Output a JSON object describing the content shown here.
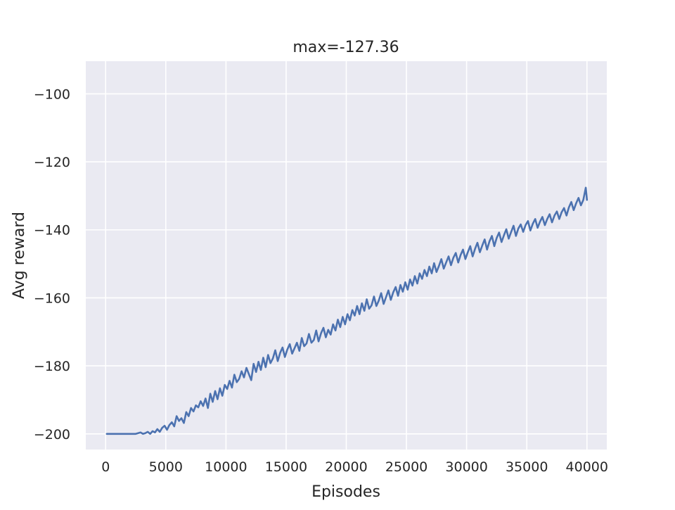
{
  "chart_data": {
    "type": "line",
    "title": "max=-127.36",
    "xlabel": "Episodes",
    "ylabel": "Avg reward",
    "xlim": [
      -1650,
      41650
    ],
    "ylim": [
      -204.6,
      -90.4
    ],
    "xticks": [
      0,
      5000,
      10000,
      15000,
      20000,
      25000,
      30000,
      35000,
      40000
    ],
    "yticks": [
      -200,
      -180,
      -160,
      -140,
      -120,
      -100
    ],
    "xtick_labels": [
      "0",
      "5000",
      "10000",
      "15000",
      "20000",
      "25000",
      "30000",
      "35000",
      "40000"
    ],
    "ytick_labels": [
      "−200",
      "−180",
      "−160",
      "−140",
      "−120",
      "−100"
    ],
    "grid": true,
    "colors": {
      "background": "#eaeaf2",
      "grid": "#ffffff",
      "line": "#4c72b0",
      "text": "#262626"
    },
    "series": [
      {
        "x": [
          100,
          500,
          1000,
          1500,
          2000,
          2500,
          2900,
          3100,
          3300,
          3500,
          3700,
          3900,
          4100,
          4300,
          4500,
          4700,
          4900,
          5100,
          5300,
          5500,
          5700,
          5900,
          6100,
          6300,
          6500,
          6700,
          6900,
          7100,
          7300,
          7500,
          7700,
          7900,
          8100,
          8300,
          8500,
          8700,
          8900,
          9100,
          9300,
          9500,
          9700,
          9900,
          10100,
          10300,
          10500,
          10700,
          10900,
          11100,
          11300,
          11500,
          11700,
          11900,
          12100,
          12300,
          12500,
          12700,
          12900,
          13100,
          13300,
          13500,
          13700,
          13900,
          14100,
          14300,
          14500,
          14700,
          14900,
          15100,
          15300,
          15500,
          15700,
          15900,
          16100,
          16300,
          16500,
          16700,
          16900,
          17100,
          17300,
          17500,
          17700,
          17900,
          18100,
          18300,
          18500,
          18700,
          18900,
          19100,
          19300,
          19500,
          19700,
          19900,
          20100,
          20300,
          20500,
          20700,
          20900,
          21100,
          21300,
          21500,
          21700,
          21900,
          22100,
          22300,
          22500,
          22700,
          22900,
          23100,
          23300,
          23500,
          23700,
          23900,
          24100,
          24300,
          24500,
          24700,
          24900,
          25100,
          25300,
          25500,
          25700,
          25900,
          26100,
          26300,
          26500,
          26700,
          26900,
          27100,
          27300,
          27500,
          27700,
          27900,
          28100,
          28300,
          28500,
          28700,
          28900,
          29100,
          29300,
          29500,
          29700,
          29900,
          30100,
          30300,
          30500,
          30700,
          30900,
          31100,
          31300,
          31500,
          31700,
          31900,
          32100,
          32300,
          32500,
          32700,
          32900,
          33100,
          33300,
          33500,
          33700,
          33900,
          34100,
          34300,
          34500,
          34700,
          34900,
          35100,
          35300,
          35500,
          35700,
          35900,
          36100,
          36300,
          36500,
          36700,
          36900,
          37100,
          37300,
          37500,
          37700,
          37900,
          38100,
          38300,
          38500,
          38700,
          38900,
          39100,
          39300,
          39500,
          39700,
          39900,
          40000
        ],
        "values": [
          -200,
          -200,
          -200,
          -200,
          -200,
          -200,
          -199.6,
          -200,
          -199.8,
          -199.4,
          -200,
          -199.2,
          -199.6,
          -198.6,
          -199.4,
          -198.2,
          -197.6,
          -198.8,
          -197.4,
          -196.6,
          -197.8,
          -194.8,
          -196.2,
          -195.4,
          -196.8,
          -193.6,
          -194.8,
          -192.4,
          -193.4,
          -191.6,
          -192.2,
          -190.4,
          -191.8,
          -189.6,
          -192.4,
          -188.2,
          -190.6,
          -187.4,
          -189.8,
          -186.6,
          -188.8,
          -185.6,
          -186.8,
          -184.4,
          -186.4,
          -182.6,
          -184.8,
          -183.8,
          -181.6,
          -183.4,
          -180.6,
          -182.4,
          -184.2,
          -179.4,
          -181.8,
          -178.8,
          -181.2,
          -177.6,
          -180.4,
          -176.8,
          -179.2,
          -177.8,
          -175.4,
          -178.6,
          -176.2,
          -174.6,
          -177.4,
          -175.2,
          -173.6,
          -176.4,
          -174.8,
          -173.2,
          -175.6,
          -171.8,
          -174.2,
          -173.4,
          -170.6,
          -173.2,
          -172.4,
          -169.6,
          -172.8,
          -170.4,
          -168.8,
          -171.6,
          -169.4,
          -170.8,
          -167.8,
          -169.6,
          -166.4,
          -168.6,
          -165.6,
          -167.8,
          -164.8,
          -166.6,
          -163.6,
          -165.2,
          -162.4,
          -164.8,
          -161.6,
          -163.8,
          -160.4,
          -163.2,
          -162.2,
          -159.6,
          -162.4,
          -160.8,
          -158.6,
          -161.8,
          -159.8,
          -157.8,
          -160.6,
          -158.4,
          -156.8,
          -159.4,
          -156.2,
          -158.2,
          -155.4,
          -157.6,
          -154.6,
          -156.4,
          -153.6,
          -155.8,
          -152.8,
          -154.4,
          -151.8,
          -153.6,
          -150.8,
          -152.8,
          -149.8,
          -152.4,
          -150.6,
          -148.6,
          -151.4,
          -149.6,
          -147.8,
          -150.4,
          -148.2,
          -146.8,
          -149.6,
          -147.4,
          -145.8,
          -148.6,
          -146.6,
          -144.8,
          -147.8,
          -145.6,
          -143.8,
          -146.6,
          -144.6,
          -142.8,
          -145.8,
          -143.4,
          -141.8,
          -144.8,
          -142.4,
          -140.8,
          -143.6,
          -141.6,
          -139.8,
          -142.6,
          -140.6,
          -138.8,
          -141.8,
          -139.6,
          -138.4,
          -140.6,
          -138.6,
          -137.4,
          -140.2,
          -138.2,
          -136.8,
          -139.4,
          -137.6,
          -136.2,
          -138.6,
          -136.8,
          -135.4,
          -137.8,
          -135.8,
          -134.6,
          -136.8,
          -134.8,
          -133.6,
          -135.8,
          -133.4,
          -131.8,
          -134.2,
          -132.2,
          -130.6,
          -132.8,
          -131.2,
          -127.6,
          -131.2
        ]
      }
    ]
  }
}
